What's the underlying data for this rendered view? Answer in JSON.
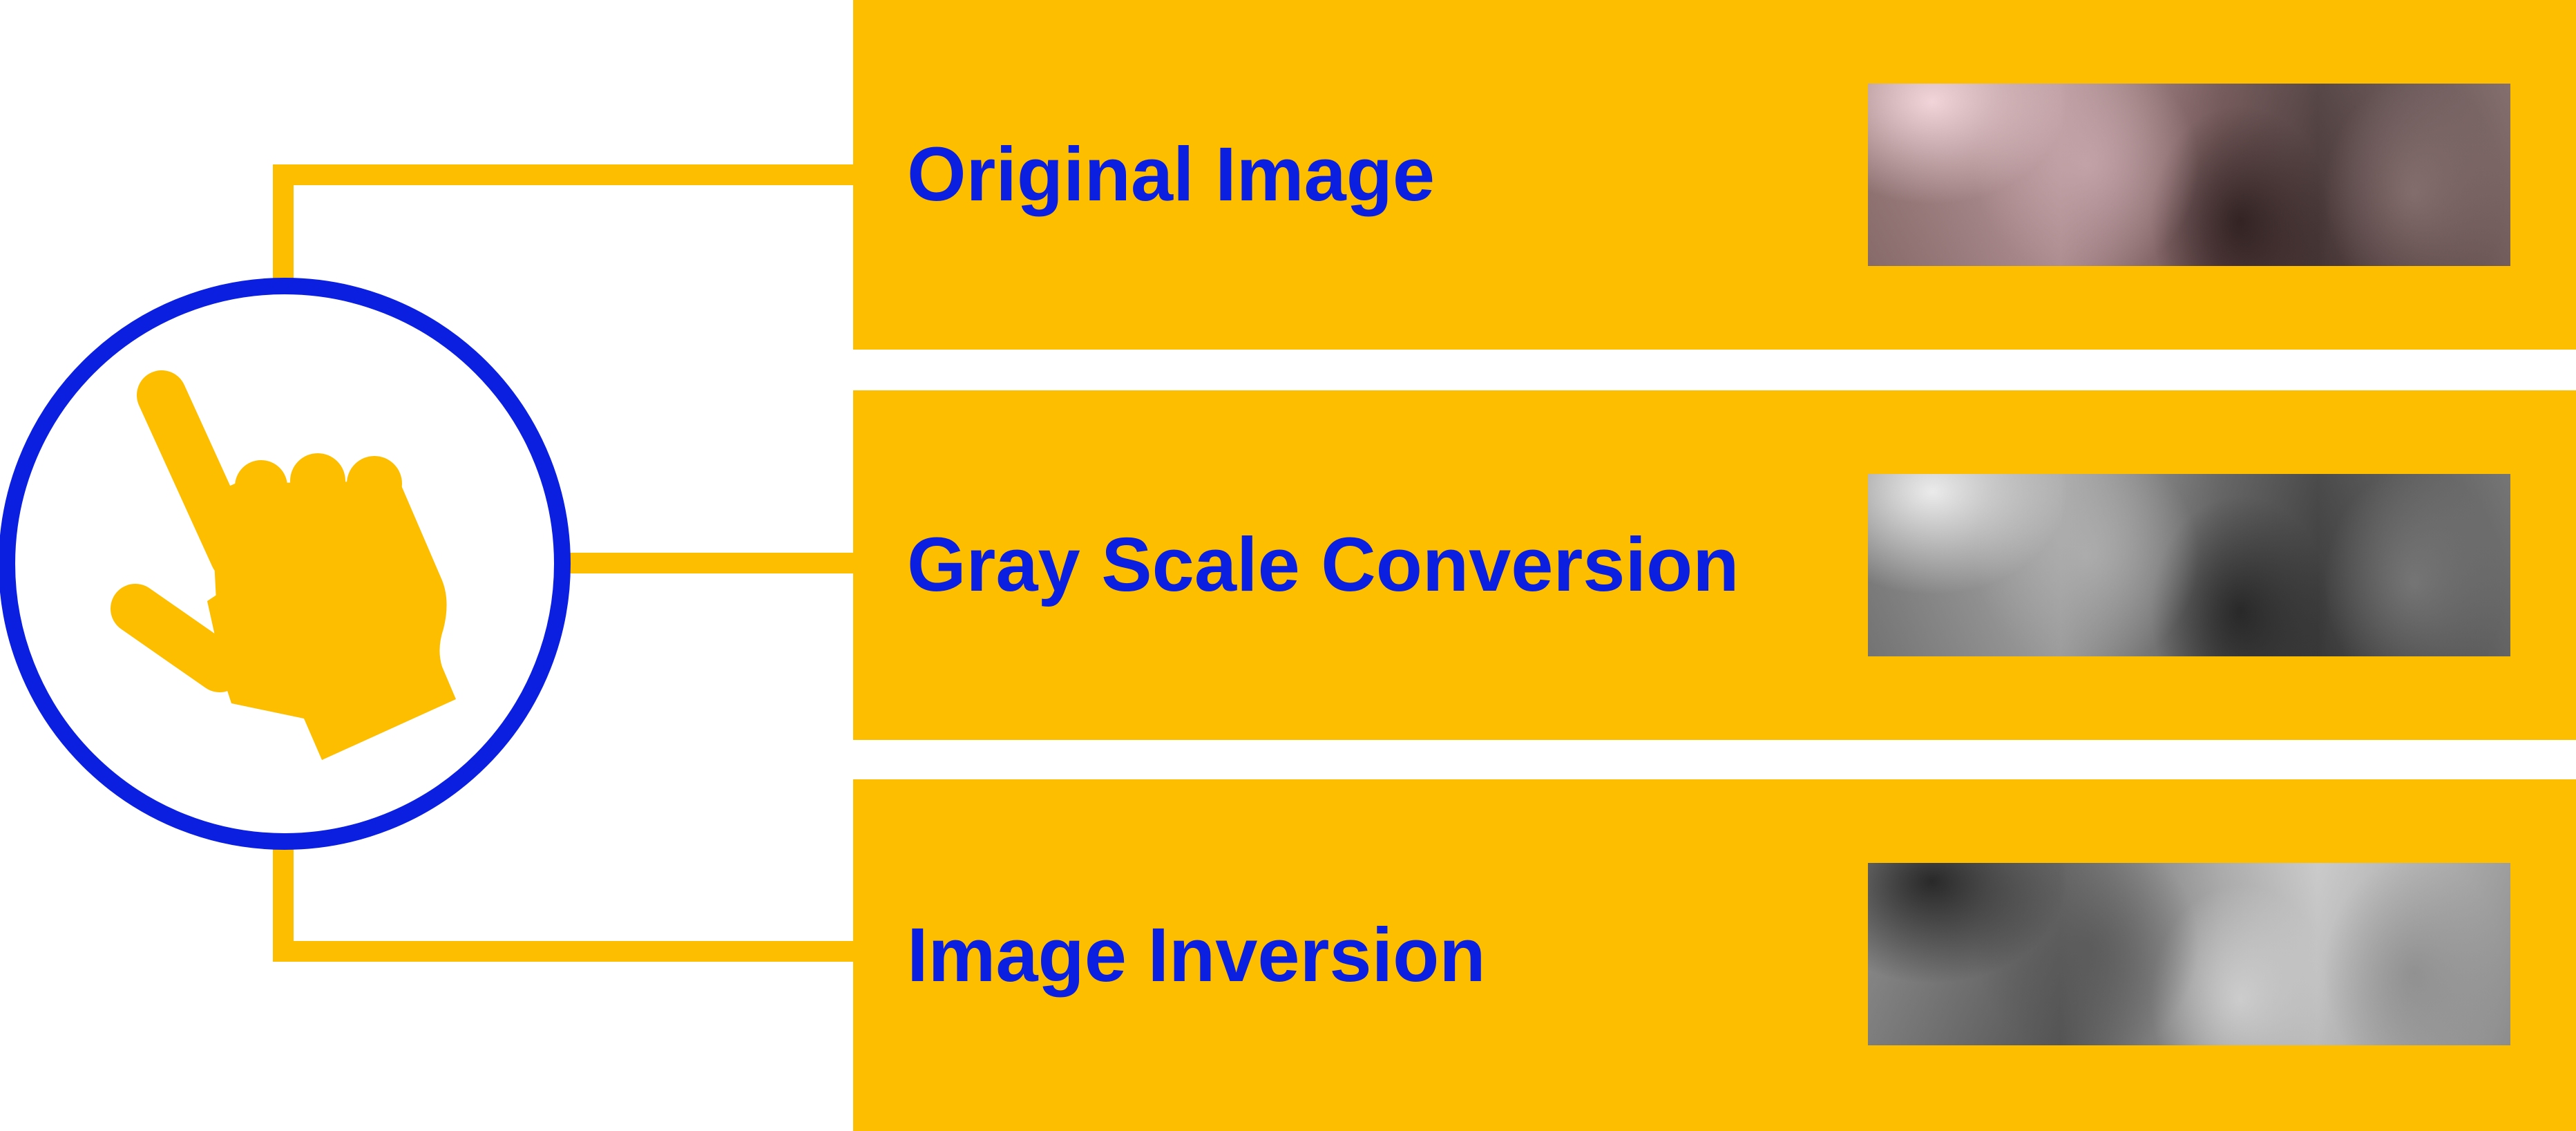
{
  "colors": {
    "panel": "#FDBE00",
    "label_text": "#0A1FE0",
    "circle_stroke": "#0A1FE0",
    "connector": "#FDBE00",
    "hand": "#FDBE00",
    "background": "#FFFFFF"
  },
  "center_icon": {
    "name": "pointing-hand-icon"
  },
  "steps": [
    {
      "label": "Original Image",
      "thumbnail": "color-photo"
    },
    {
      "label": "Gray Scale Conversion",
      "thumbnail": "grayscale-photo"
    },
    {
      "label": "Image Inversion",
      "thumbnail": "inverted-photo"
    }
  ]
}
